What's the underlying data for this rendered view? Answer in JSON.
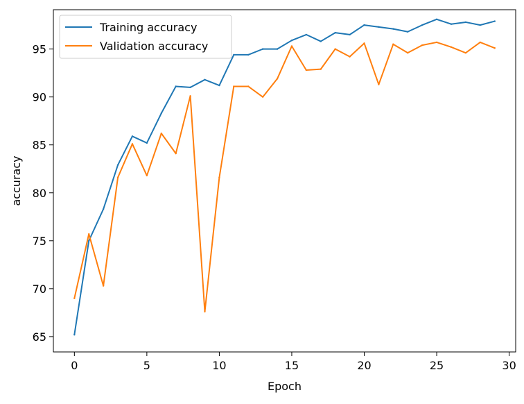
{
  "chart_data": {
    "type": "line",
    "title": "",
    "xlabel": "Epoch",
    "ylabel": "accuracy",
    "xlim": [
      -1.45,
      30.45
    ],
    "ylim": [
      63.4,
      99.1
    ],
    "xticks": [
      0,
      5,
      10,
      15,
      20,
      25,
      30
    ],
    "yticks": [
      65,
      70,
      75,
      80,
      85,
      90,
      95
    ],
    "grid": false,
    "legend_position": "upper-left",
    "x": [
      0,
      1,
      2,
      3,
      4,
      5,
      6,
      7,
      8,
      9,
      10,
      11,
      12,
      13,
      14,
      15,
      16,
      17,
      18,
      19,
      20,
      21,
      22,
      23,
      24,
      25,
      26,
      27,
      28,
      29
    ],
    "series": [
      {
        "name": "Training accuracy",
        "color": "#1f77b4",
        "values": [
          65.2,
          75.0,
          78.3,
          82.9,
          85.9,
          85.2,
          88.3,
          91.1,
          91.0,
          91.8,
          91.2,
          94.4,
          94.4,
          95.0,
          95.0,
          95.9,
          96.5,
          95.8,
          96.7,
          96.5,
          97.5,
          97.3,
          97.1,
          96.8,
          97.5,
          98.1,
          97.6,
          97.8,
          97.5,
          97.9
        ]
      },
      {
        "name": "Validation accuracy",
        "color": "#ff7f0e",
        "values": [
          69.0,
          75.7,
          70.3,
          81.6,
          85.1,
          81.8,
          86.2,
          84.1,
          90.1,
          67.6,
          81.6,
          91.1,
          91.1,
          90.0,
          91.9,
          95.3,
          92.8,
          92.9,
          95.0,
          94.2,
          95.6,
          91.3,
          95.5,
          94.6,
          95.4,
          95.7,
          95.2,
          94.6,
          95.7,
          95.1
        ]
      }
    ]
  }
}
